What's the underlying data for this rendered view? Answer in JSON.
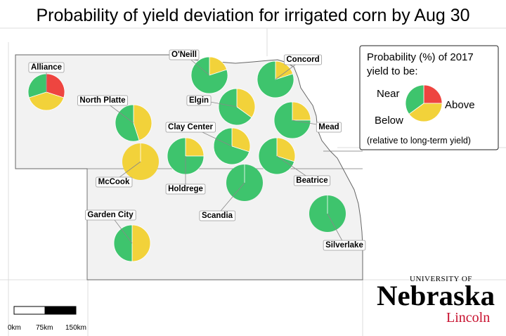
{
  "title": "Probability of yield deviation for irrigated corn by Aug 30",
  "colors": {
    "below": "#ee4540",
    "near": "#f2d23a",
    "above": "#3ec46d",
    "state_fill": "#f2f2f2",
    "border": "#666666"
  },
  "sites": [
    {
      "name": "Alliance",
      "below": 30,
      "near": 40,
      "above": 30
    },
    {
      "name": "O'Neill",
      "below": 0,
      "near": 20,
      "above": 80
    },
    {
      "name": "Concord",
      "below": 0,
      "near": 20,
      "above": 80
    },
    {
      "name": "Elgin",
      "below": 0,
      "near": 35,
      "above": 65
    },
    {
      "name": "North Platte",
      "below": 0,
      "near": 45,
      "above": 55
    },
    {
      "name": "Mead",
      "below": 0,
      "near": 25,
      "above": 75
    },
    {
      "name": "Clay Center",
      "below": 0,
      "near": 30,
      "above": 70
    },
    {
      "name": "McCook",
      "below": 0,
      "near": 100,
      "above": 0
    },
    {
      "name": "Holdrege",
      "below": 0,
      "near": 25,
      "above": 75
    },
    {
      "name": "Beatrice",
      "below": 0,
      "near": 30,
      "above": 70
    },
    {
      "name": "Scandia",
      "below": 0,
      "near": 0,
      "above": 100
    },
    {
      "name": "Garden City",
      "below": 0,
      "near": 50,
      "above": 50
    },
    {
      "name": "Silverlake",
      "below": 0,
      "near": 0,
      "above": 100
    }
  ],
  "legend": {
    "title_line1": "Probability (%) of 2017",
    "title_line2": "yield to be:",
    "near": "Near",
    "above": "Above",
    "below": "Below",
    "note": "(relative to long-term yield)",
    "example": {
      "below": 25,
      "near": 40,
      "above": 35
    }
  },
  "scalebar": {
    "labels": [
      "0km",
      "75km",
      "150km"
    ]
  },
  "logo": {
    "line1": "UNIVERSITY OF",
    "line2": "Nebraska",
    "line3": "Lincoln"
  }
}
